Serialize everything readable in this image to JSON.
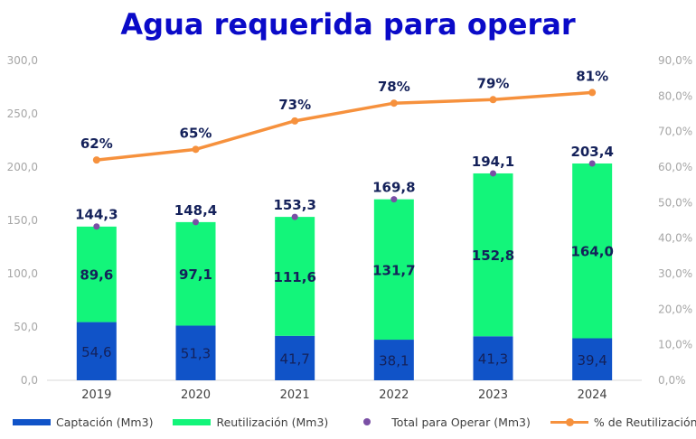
{
  "title": "Agua requerida para operar",
  "chart_data": {
    "type": "bar",
    "stacked": true,
    "categories": [
      "2019",
      "2020",
      "2021",
      "2022",
      "2023",
      "2024"
    ],
    "series": [
      {
        "name": "Captación (Mm3)",
        "type": "bar",
        "axis": "left",
        "color": "#1053c8",
        "values": [
          54.6,
          51.3,
          41.7,
          38.1,
          41.3,
          39.4
        ],
        "labels": [
          "54,6",
          "51,3",
          "41,7",
          "38,1",
          "41,3",
          "39,4"
        ]
      },
      {
        "name": "Reutilización (Mm3)",
        "type": "bar",
        "axis": "left",
        "color": "#13f57a",
        "values": [
          89.6,
          97.1,
          111.6,
          131.7,
          152.8,
          164.0
        ],
        "labels": [
          "89,6",
          "97,1",
          "111,6",
          "131,7",
          "152,8",
          "164,0"
        ]
      },
      {
        "name": "Total para Operar (Mm3)",
        "type": "scatter",
        "axis": "left",
        "color": "#7a4fa5",
        "values": [
          144.3,
          148.4,
          153.3,
          169.8,
          194.1,
          203.4
        ],
        "labels": [
          "144,3",
          "148,4",
          "153,3",
          "169,8",
          "194,1",
          "203,4"
        ]
      },
      {
        "name": "% de Reutilización total",
        "type": "line",
        "axis": "right",
        "color": "#f6913d",
        "values": [
          62,
          65,
          73,
          78,
          79,
          81
        ],
        "labels": [
          "62%",
          "65%",
          "73%",
          "78%",
          "79%",
          "81%"
        ]
      }
    ],
    "y_left": {
      "min": 0,
      "max": 300,
      "ticks": [
        "0,0",
        "50,0",
        "100,0",
        "150,0",
        "200,0",
        "250,0",
        "300,0"
      ]
    },
    "y_right": {
      "min": 0,
      "max": 90,
      "ticks": [
        "0,0%",
        "10,0%",
        "20,0%",
        "30,0%",
        "40,0%",
        "50,0%",
        "60,0%",
        "70,0%",
        "80,0%",
        "90,0%"
      ]
    },
    "grid": false,
    "legend_position": "bottom"
  }
}
